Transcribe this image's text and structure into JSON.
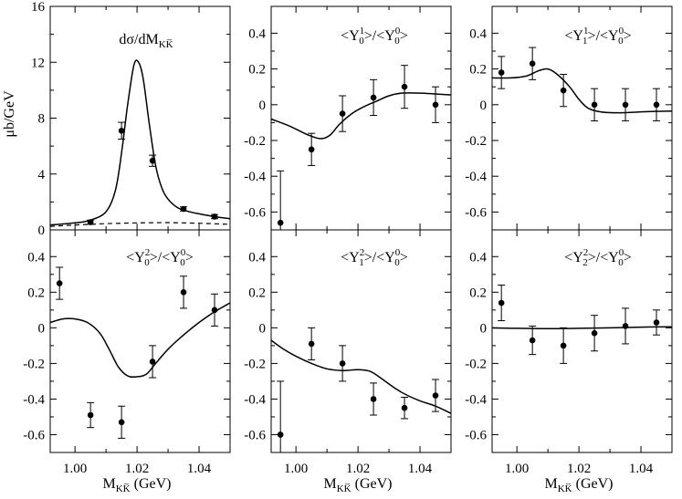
{
  "figure": {
    "ylabel_top": "μb/GeV",
    "xlabel": {
      "main": "M",
      "sub": "KK̅",
      "unit": " (GeV)"
    }
  },
  "chart_data": [
    {
      "id": "p1",
      "type": "scatter",
      "title": {
        "pre": "dσ/dM",
        "sub": "KK̅",
        "mid": "",
        "sub2": "",
        "post": ""
      },
      "xlim": [
        0.992,
        1.05
      ],
      "ylim": [
        0,
        16
      ],
      "yticks": [
        0,
        4,
        8,
        12,
        16
      ],
      "ytick_labels": [
        "0",
        "4",
        "8",
        "12",
        "16"
      ],
      "xticks": [
        1.0,
        1.02,
        1.04
      ],
      "points": [
        {
          "x": 1.005,
          "y": 0.55,
          "err": 0.15
        },
        {
          "x": 1.015,
          "y": 7.1,
          "err": 0.6
        },
        {
          "x": 1.025,
          "y": 4.95,
          "err": 0.4
        },
        {
          "x": 1.035,
          "y": 1.5,
          "err": 0.15
        },
        {
          "x": 1.045,
          "y": 0.95,
          "err": 0.15
        }
      ],
      "curve": [
        [
          0.992,
          0.35
        ],
        [
          1.0,
          0.5
        ],
        [
          1.005,
          0.7
        ],
        [
          1.01,
          1.3
        ],
        [
          1.013,
          2.8
        ],
        [
          1.015,
          5.5
        ],
        [
          1.017,
          9.0
        ],
        [
          1.019,
          11.8
        ],
        [
          1.0205,
          12.0
        ],
        [
          1.022,
          10.8
        ],
        [
          1.024,
          7.5
        ],
        [
          1.026,
          4.6
        ],
        [
          1.028,
          3.0
        ],
        [
          1.03,
          2.2
        ],
        [
          1.033,
          1.6
        ],
        [
          1.036,
          1.35
        ],
        [
          1.04,
          1.15
        ],
        [
          1.045,
          0.95
        ],
        [
          1.05,
          0.8
        ]
      ],
      "dashed_curve": [
        [
          0.992,
          0.25
        ],
        [
          1.0,
          0.35
        ],
        [
          1.01,
          0.45
        ],
        [
          1.02,
          0.5
        ],
        [
          1.03,
          0.52
        ],
        [
          1.04,
          0.48
        ],
        [
          1.05,
          0.4
        ]
      ]
    },
    {
      "id": "p2",
      "type": "scatter",
      "title": {
        "pre": "<Y",
        "sub": "0",
        "sup": "1",
        "mid": ">/<Y",
        "sub2": "0",
        "sup2": "0",
        "post": ">"
      },
      "xlim": [
        0.992,
        1.05
      ],
      "ylim": [
        -0.7,
        0.55
      ],
      "yticks": [
        -0.6,
        -0.4,
        -0.2,
        0,
        0.2,
        0.4
      ],
      "ytick_labels": [
        "-0.6",
        "-0.4",
        "-0.2",
        "0",
        "0.2",
        "0.4"
      ],
      "xticks": [
        1.0,
        1.02,
        1.04
      ],
      "points": [
        {
          "x": 0.995,
          "y": -0.66,
          "err": 0.29
        },
        {
          "x": 1.005,
          "y": -0.25,
          "err": 0.09
        },
        {
          "x": 1.015,
          "y": -0.05,
          "err": 0.1
        },
        {
          "x": 1.025,
          "y": 0.04,
          "err": 0.1
        },
        {
          "x": 1.035,
          "y": 0.1,
          "err": 0.12
        },
        {
          "x": 1.045,
          "y": 0.0,
          "err": 0.1
        }
      ],
      "curve": [
        [
          0.992,
          -0.08
        ],
        [
          0.998,
          -0.12
        ],
        [
          1.004,
          -0.17
        ],
        [
          1.008,
          -0.19
        ],
        [
          1.011,
          -0.17
        ],
        [
          1.014,
          -0.11
        ],
        [
          1.018,
          -0.05
        ],
        [
          1.022,
          -0.01
        ],
        [
          1.026,
          0.02
        ],
        [
          1.03,
          0.05
        ],
        [
          1.034,
          0.065
        ],
        [
          1.04,
          0.065
        ],
        [
          1.045,
          0.06
        ],
        [
          1.05,
          0.055
        ]
      ]
    },
    {
      "id": "p3",
      "type": "scatter",
      "title": {
        "pre": "<Y",
        "sub": "1",
        "sup": "1",
        "mid": ">/<Y",
        "sub2": "0",
        "sup2": "0",
        "post": ">"
      },
      "xlim": [
        0.992,
        1.05
      ],
      "ylim": [
        -0.7,
        0.55
      ],
      "yticks": [
        -0.6,
        -0.4,
        -0.2,
        0,
        0.2,
        0.4
      ],
      "ytick_labels": [
        "-0.6",
        "-0.4",
        "-0.2",
        "0",
        "0.2",
        "0.4"
      ],
      "xticks": [
        1.0,
        1.02,
        1.04
      ],
      "points": [
        {
          "x": 0.995,
          "y": 0.18,
          "err": 0.09
        },
        {
          "x": 1.005,
          "y": 0.23,
          "err": 0.09
        },
        {
          "x": 1.015,
          "y": 0.08,
          "err": 0.09
        },
        {
          "x": 1.025,
          "y": 0.0,
          "err": 0.09
        },
        {
          "x": 1.035,
          "y": 0.0,
          "err": 0.09
        },
        {
          "x": 1.045,
          "y": 0.0,
          "err": 0.09
        }
      ],
      "curve": [
        [
          0.992,
          0.15
        ],
        [
          0.998,
          0.15
        ],
        [
          1.003,
          0.16
        ],
        [
          1.007,
          0.19
        ],
        [
          1.01,
          0.2
        ],
        [
          1.013,
          0.17
        ],
        [
          1.017,
          0.1
        ],
        [
          1.02,
          0.03
        ],
        [
          1.023,
          -0.02
        ],
        [
          1.027,
          -0.04
        ],
        [
          1.033,
          -0.045
        ],
        [
          1.04,
          -0.04
        ],
        [
          1.05,
          -0.035
        ]
      ]
    },
    {
      "id": "p4",
      "type": "scatter",
      "title": {
        "pre": "<Y",
        "sub": "0",
        "sup": "2",
        "mid": ">/<Y",
        "sub2": "0",
        "sup2": "0",
        "post": ">"
      },
      "xlim": [
        0.992,
        1.05
      ],
      "ylim": [
        -0.7,
        0.55
      ],
      "yticks": [
        -0.6,
        -0.4,
        -0.2,
        0,
        0.2,
        0.4
      ],
      "ytick_labels": [
        "-0.6",
        "-0.4",
        "-0.2",
        "0",
        "0.2",
        "0.4"
      ],
      "xticks": [
        1.0,
        1.02,
        1.04
      ],
      "points": [
        {
          "x": 0.995,
          "y": 0.25,
          "err": 0.09
        },
        {
          "x": 1.005,
          "y": -0.49,
          "err": 0.07
        },
        {
          "x": 1.015,
          "y": -0.53,
          "err": 0.09
        },
        {
          "x": 1.025,
          "y": -0.19,
          "err": 0.09
        },
        {
          "x": 1.035,
          "y": 0.2,
          "err": 0.09
        },
        {
          "x": 1.045,
          "y": 0.1,
          "err": 0.09
        }
      ],
      "curve": [
        [
          0.992,
          0.03
        ],
        [
          0.996,
          0.05
        ],
        [
          1.0,
          0.05
        ],
        [
          1.004,
          0.03
        ],
        [
          1.008,
          -0.03
        ],
        [
          1.011,
          -0.12
        ],
        [
          1.014,
          -0.22
        ],
        [
          1.017,
          -0.27
        ],
        [
          1.02,
          -0.275
        ],
        [
          1.023,
          -0.26
        ],
        [
          1.026,
          -0.2
        ],
        [
          1.03,
          -0.12
        ],
        [
          1.035,
          -0.04
        ],
        [
          1.04,
          0.03
        ],
        [
          1.045,
          0.09
        ],
        [
          1.05,
          0.14
        ]
      ]
    },
    {
      "id": "p5",
      "type": "scatter",
      "title": {
        "pre": "<Y",
        "sub": "1",
        "sup": "2",
        "mid": ">/<Y",
        "sub2": "0",
        "sup2": "0",
        "post": ">"
      },
      "xlim": [
        0.992,
        1.05
      ],
      "ylim": [
        -0.7,
        0.55
      ],
      "yticks": [
        -0.6,
        -0.4,
        -0.2,
        0,
        0.2,
        0.4
      ],
      "ytick_labels": [
        "-0.6",
        "-0.4",
        "-0.2",
        "0",
        "0.2",
        "0.4"
      ],
      "xticks": [
        1.0,
        1.02,
        1.04
      ],
      "points": [
        {
          "x": 0.995,
          "y": -0.6,
          "err": 0.3
        },
        {
          "x": 1.005,
          "y": -0.09,
          "err": 0.09
        },
        {
          "x": 1.015,
          "y": -0.2,
          "err": 0.1
        },
        {
          "x": 1.025,
          "y": -0.4,
          "err": 0.09
        },
        {
          "x": 1.035,
          "y": -0.45,
          "err": 0.06
        },
        {
          "x": 1.045,
          "y": -0.38,
          "err": 0.09
        }
      ],
      "curve": [
        [
          0.992,
          -0.07
        ],
        [
          0.996,
          -0.12
        ],
        [
          1.0,
          -0.16
        ],
        [
          1.005,
          -0.2
        ],
        [
          1.01,
          -0.23
        ],
        [
          1.015,
          -0.24
        ],
        [
          1.02,
          -0.235
        ],
        [
          1.024,
          -0.245
        ],
        [
          1.028,
          -0.29
        ],
        [
          1.032,
          -0.34
        ],
        [
          1.036,
          -0.38
        ],
        [
          1.04,
          -0.41
        ],
        [
          1.045,
          -0.44
        ],
        [
          1.05,
          -0.48
        ]
      ]
    },
    {
      "id": "p6",
      "type": "scatter",
      "title": {
        "pre": "<Y",
        "sub": "2",
        "sup": "2",
        "mid": ">/<Y",
        "sub2": "0",
        "sup2": "0",
        "post": ">"
      },
      "xlim": [
        0.992,
        1.05
      ],
      "ylim": [
        -0.7,
        0.55
      ],
      "yticks": [
        -0.6,
        -0.4,
        -0.2,
        0,
        0.2,
        0.4
      ],
      "ytick_labels": [
        "-0.6",
        "-0.4",
        "-0.2",
        "0",
        "0.2",
        "0.4"
      ],
      "xticks": [
        1.0,
        1.02,
        1.04
      ],
      "points": [
        {
          "x": 0.995,
          "y": 0.14,
          "err": 0.1
        },
        {
          "x": 1.005,
          "y": -0.07,
          "err": 0.08
        },
        {
          "x": 1.015,
          "y": -0.1,
          "err": 0.1
        },
        {
          "x": 1.025,
          "y": -0.03,
          "err": 0.1
        },
        {
          "x": 1.035,
          "y": 0.01,
          "err": 0.1
        },
        {
          "x": 1.045,
          "y": 0.03,
          "err": 0.07
        }
      ],
      "curve": [
        [
          0.992,
          0.0
        ],
        [
          1.0,
          -0.003
        ],
        [
          1.01,
          -0.005
        ],
        [
          1.02,
          -0.003
        ],
        [
          1.03,
          0.0
        ],
        [
          1.04,
          0.004
        ],
        [
          1.05,
          0.006
        ]
      ]
    }
  ]
}
